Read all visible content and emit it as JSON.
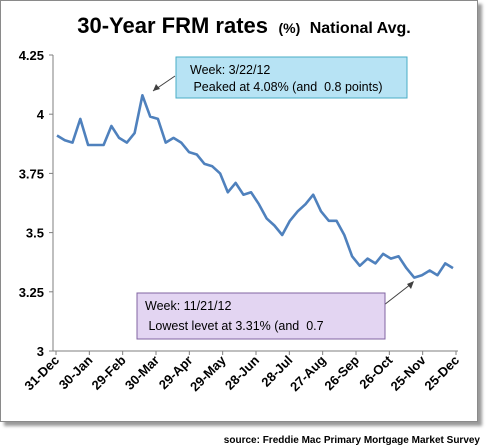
{
  "chart_data": {
    "type": "line",
    "title": "30-Year FRM rates",
    "title_unit": "(%)",
    "subtitle": "National Avg.",
    "ylim": [
      3,
      4.25
    ],
    "yticks": [
      "3",
      "3.25",
      "3.5",
      "3.75",
      "4",
      "4.25"
    ],
    "ytick_values": [
      3,
      3.25,
      3.5,
      3.75,
      4,
      4.25
    ],
    "xtick_labels": [
      "31-Dec",
      "30-Jan",
      "29-Feb",
      "30-Mar",
      "29-Apr",
      "29-May",
      "28-Jun",
      "28-Jul",
      "27-Aug",
      "26-Sep",
      "26-Oct",
      "25-Nov",
      "25-Dec"
    ],
    "series": [
      {
        "color": "#4f81bd",
        "x": [
          0,
          7,
          14,
          21,
          28,
          35,
          42,
          49,
          56,
          63,
          70,
          77,
          84,
          91,
          98,
          105,
          112,
          119,
          126,
          133,
          140,
          147,
          154,
          161,
          168,
          175,
          182,
          189,
          196,
          203,
          210,
          217,
          224,
          231,
          238,
          245,
          252,
          259,
          266,
          273,
          280,
          287,
          294,
          301,
          308,
          315,
          322,
          329,
          336,
          343,
          350,
          357
        ],
        "values": [
          3.91,
          3.89,
          3.88,
          3.98,
          3.87,
          3.87,
          3.87,
          3.95,
          3.9,
          3.88,
          3.92,
          4.08,
          3.99,
          3.98,
          3.88,
          3.9,
          3.88,
          3.84,
          3.83,
          3.79,
          3.78,
          3.75,
          3.67,
          3.71,
          3.66,
          3.67,
          3.62,
          3.56,
          3.53,
          3.49,
          3.55,
          3.59,
          3.62,
          3.66,
          3.59,
          3.55,
          3.55,
          3.49,
          3.4,
          3.36,
          3.39,
          3.37,
          3.41,
          3.39,
          3.4,
          3.35,
          3.31,
          3.32,
          3.34,
          3.32,
          3.37,
          3.35
        ]
      }
    ],
    "annotations": [
      {
        "lines": [
          "Week: 3/22/12",
          " Peaked at 4.08% (and  0.8 points)"
        ],
        "fill": "#b7e3f4",
        "stroke": "#4aacc6"
      },
      {
        "lines": [
          "Week: 11/21/12",
          " Lowest levet at 3.31% (and  0.7"
        ],
        "fill": "#e3d5f2",
        "stroke": "#8064a2"
      }
    ],
    "source": "source: Freddie Mac Primary Mortgage Market Survey"
  }
}
